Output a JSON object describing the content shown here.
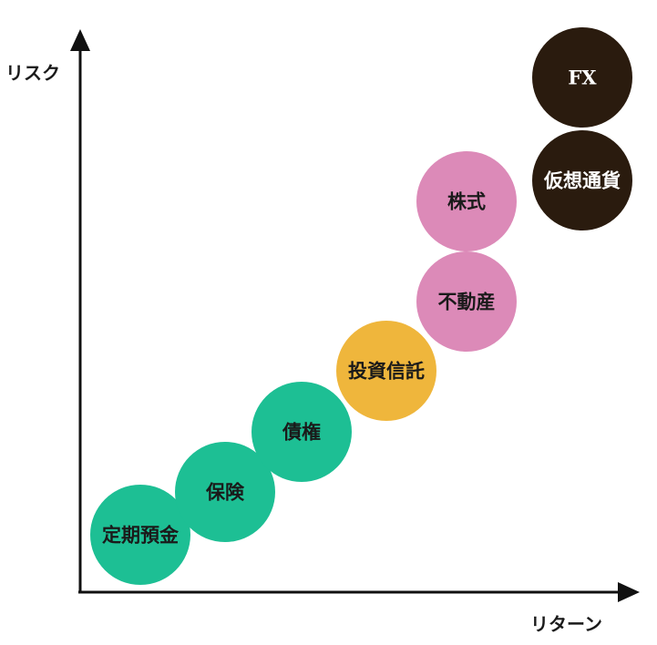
{
  "axes": {
    "y_label": "リスク",
    "x_label": "リターン"
  },
  "colors": {
    "low_risk": "#1dbf94",
    "mid_risk": "#efb63c",
    "high_risk": "#dc8ab8",
    "very_high_risk": "#2a1b0e",
    "axis": "#111111"
  },
  "assets": [
    {
      "id": "time-deposit",
      "label": "定期預金",
      "color": "#1dbf94",
      "text_color": "#1a1a1a"
    },
    {
      "id": "insurance",
      "label": "保険",
      "color": "#1dbf94",
      "text_color": "#1a1a1a"
    },
    {
      "id": "bonds",
      "label": "債権",
      "color": "#1dbf94",
      "text_color": "#1a1a1a"
    },
    {
      "id": "investment-trust",
      "label": "投資信託",
      "color": "#efb63c",
      "text_color": "#1a1a1a"
    },
    {
      "id": "real-estate",
      "label": "不動産",
      "color": "#dc8ab8",
      "text_color": "#1a1a1a"
    },
    {
      "id": "stocks",
      "label": "株式",
      "color": "#dc8ab8",
      "text_color": "#1a1a1a"
    },
    {
      "id": "crypto",
      "label": "仮想通貨",
      "color": "#2a1b0e",
      "text_color": "#ffffff"
    },
    {
      "id": "fx",
      "label": "FX",
      "color": "#2a1b0e",
      "text_color": "#ffffff"
    }
  ]
}
